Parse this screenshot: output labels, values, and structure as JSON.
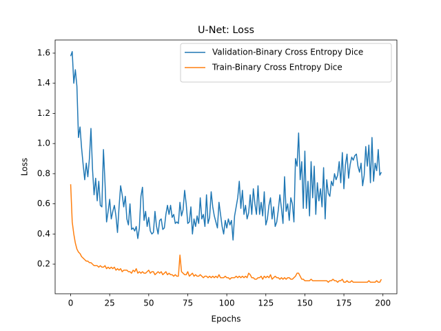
{
  "chart_data": {
    "type": "line",
    "title": "U-Net: Loss",
    "xlabel": "Epochs",
    "ylabel": "Loss",
    "x": [
      0,
      1,
      2,
      3,
      4,
      5,
      6,
      7,
      8,
      9,
      10,
      11,
      12,
      13,
      14,
      15,
      16,
      17,
      18,
      19,
      20,
      21,
      22,
      23,
      24,
      25,
      26,
      27,
      28,
      29,
      30,
      31,
      32,
      33,
      34,
      35,
      36,
      37,
      38,
      39,
      40,
      41,
      42,
      43,
      44,
      45,
      46,
      47,
      48,
      49,
      50,
      51,
      52,
      53,
      54,
      55,
      56,
      57,
      58,
      59,
      60,
      61,
      62,
      63,
      64,
      65,
      66,
      67,
      68,
      69,
      70,
      71,
      72,
      73,
      74,
      75,
      76,
      77,
      78,
      79,
      80,
      81,
      82,
      83,
      84,
      85,
      86,
      87,
      88,
      89,
      90,
      91,
      92,
      93,
      94,
      95,
      96,
      97,
      98,
      99,
      100,
      101,
      102,
      103,
      104,
      105,
      106,
      107,
      108,
      109,
      110,
      111,
      112,
      113,
      114,
      115,
      116,
      117,
      118,
      119,
      120,
      121,
      122,
      123,
      124,
      125,
      126,
      127,
      128,
      129,
      130,
      131,
      132,
      133,
      134,
      135,
      136,
      137,
      138,
      139,
      140,
      141,
      142,
      143,
      144,
      145,
      146,
      147,
      148,
      149,
      150,
      151,
      152,
      153,
      154,
      155,
      156,
      157,
      158,
      159,
      160,
      161,
      162,
      163,
      164,
      165,
      166,
      167,
      168,
      169,
      170,
      171,
      172,
      173,
      174,
      175,
      176,
      177,
      178,
      179,
      180,
      181,
      182,
      183,
      184,
      185,
      186,
      187,
      188,
      189,
      190,
      191,
      192,
      193,
      194,
      195,
      196,
      197,
      198,
      199
    ],
    "series": [
      {
        "name": "Validation-Binary Cross Entropy Dice",
        "color": "#1f77b4",
        "values": [
          1.58,
          1.61,
          1.4,
          1.49,
          1.38,
          1.04,
          1.11,
          0.97,
          0.86,
          0.76,
          0.87,
          0.78,
          0.9,
          1.1,
          0.83,
          0.66,
          0.77,
          0.62,
          0.75,
          0.59,
          0.58,
          0.96,
          0.74,
          0.48,
          0.55,
          0.63,
          0.5,
          0.55,
          0.59,
          0.52,
          0.41,
          0.58,
          0.72,
          0.66,
          0.58,
          0.65,
          0.5,
          0.46,
          0.6,
          0.43,
          0.44,
          0.42,
          0.45,
          0.37,
          0.44,
          0.65,
          0.71,
          0.49,
          0.55,
          0.45,
          0.51,
          0.42,
          0.4,
          0.41,
          0.55,
          0.45,
          0.4,
          0.49,
          0.5,
          0.43,
          0.44,
          0.53,
          0.59,
          0.53,
          0.59,
          0.51,
          0.53,
          0.47,
          0.48,
          0.47,
          0.61,
          0.52,
          0.56,
          0.69,
          0.6,
          0.47,
          0.48,
          0.58,
          0.4,
          0.5,
          0.45,
          0.52,
          0.47,
          0.64,
          0.5,
          0.53,
          0.45,
          0.66,
          0.47,
          0.51,
          0.68,
          0.58,
          0.52,
          0.48,
          0.44,
          0.61,
          0.53,
          0.45,
          0.4,
          0.49,
          0.44,
          0.5,
          0.46,
          0.49,
          0.36,
          0.52,
          0.58,
          0.64,
          0.75,
          0.57,
          0.69,
          0.53,
          0.59,
          0.5,
          0.54,
          0.66,
          0.53,
          0.7,
          0.6,
          0.53,
          0.72,
          0.53,
          0.61,
          0.52,
          0.68,
          0.46,
          0.5,
          0.59,
          0.64,
          0.5,
          0.58,
          0.45,
          0.48,
          0.56,
          0.66,
          0.57,
          0.47,
          0.78,
          0.55,
          0.6,
          0.49,
          0.64,
          0.6,
          0.48,
          0.9,
          0.85,
          1.07,
          0.76,
          0.88,
          0.57,
          0.95,
          0.57,
          0.75,
          0.52,
          0.88,
          0.64,
          0.85,
          0.53,
          0.74,
          0.62,
          0.7,
          0.58,
          0.84,
          0.5,
          0.76,
          0.67,
          0.65,
          0.75,
          0.72,
          0.8,
          0.76,
          0.79,
          0.88,
          0.74,
          0.94,
          0.7,
          0.86,
          0.93,
          0.77,
          0.86,
          0.91,
          0.89,
          0.92,
          0.93,
          0.85,
          0.81,
          0.87,
          0.72,
          0.79,
          0.98,
          0.85,
          0.99,
          0.74,
          1.04,
          0.75,
          0.87,
          0.82,
          0.96,
          0.79,
          0.81
        ]
      },
      {
        "name": "Train-Binary Cross Entropy Dice",
        "color": "#ff7f0e",
        "values": [
          0.73,
          0.48,
          0.4,
          0.34,
          0.3,
          0.28,
          0.27,
          0.25,
          0.24,
          0.23,
          0.22,
          0.22,
          0.21,
          0.21,
          0.2,
          0.19,
          0.19,
          0.19,
          0.18,
          0.19,
          0.18,
          0.18,
          0.19,
          0.17,
          0.18,
          0.17,
          0.18,
          0.17,
          0.18,
          0.16,
          0.17,
          0.16,
          0.17,
          0.15,
          0.16,
          0.16,
          0.16,
          0.15,
          0.15,
          0.14,
          0.16,
          0.15,
          0.17,
          0.14,
          0.15,
          0.14,
          0.15,
          0.14,
          0.14,
          0.15,
          0.16,
          0.14,
          0.15,
          0.15,
          0.13,
          0.14,
          0.15,
          0.14,
          0.15,
          0.13,
          0.14,
          0.15,
          0.13,
          0.14,
          0.13,
          0.13,
          0.12,
          0.13,
          0.12,
          0.12,
          0.26,
          0.15,
          0.14,
          0.13,
          0.13,
          0.15,
          0.12,
          0.13,
          0.14,
          0.12,
          0.13,
          0.12,
          0.12,
          0.13,
          0.12,
          0.11,
          0.12,
          0.12,
          0.11,
          0.12,
          0.11,
          0.12,
          0.11,
          0.12,
          0.11,
          0.13,
          0.11,
          0.11,
          0.11,
          0.12,
          0.11,
          0.11,
          0.1,
          0.11,
          0.11,
          0.11,
          0.12,
          0.11,
          0.12,
          0.11,
          0.12,
          0.11,
          0.12,
          0.11,
          0.14,
          0.13,
          0.11,
          0.11,
          0.1,
          0.1,
          0.11,
          0.11,
          0.12,
          0.1,
          0.12,
          0.11,
          0.12,
          0.11,
          0.13,
          0.1,
          0.11,
          0.12,
          0.11,
          0.11,
          0.1,
          0.11,
          0.1,
          0.11,
          0.1,
          0.11,
          0.11,
          0.1,
          0.1,
          0.11,
          0.12,
          0.14,
          0.14,
          0.12,
          0.1,
          0.1,
          0.09,
          0.09,
          0.09,
          0.09,
          0.1,
          0.09,
          0.09,
          0.09,
          0.09,
          0.09,
          0.09,
          0.09,
          0.09,
          0.09,
          0.09,
          0.08,
          0.09,
          0.09,
          0.1,
          0.09,
          0.09,
          0.08,
          0.09,
          0.09,
          0.1,
          0.08,
          0.08,
          0.09,
          0.08,
          0.08,
          0.09,
          0.08,
          0.08,
          0.08,
          0.08,
          0.08,
          0.08,
          0.08,
          0.08,
          0.08,
          0.08,
          0.09,
          0.08,
          0.08,
          0.08,
          0.08,
          0.09,
          0.08,
          0.08,
          0.1
        ]
      }
    ],
    "xlim": [
      -9.95,
      208.95
    ],
    "ylim": [
      0.0035,
      1.687
    ],
    "xticks": [
      0,
      25,
      50,
      75,
      100,
      125,
      150,
      175,
      200
    ],
    "yticks": [
      0.2,
      0.4,
      0.6,
      0.8,
      {
        "value": 1,
        "label": "1.0"
      },
      1.2,
      1.4,
      1.6
    ],
    "legend": "upper right",
    "grid": false
  }
}
